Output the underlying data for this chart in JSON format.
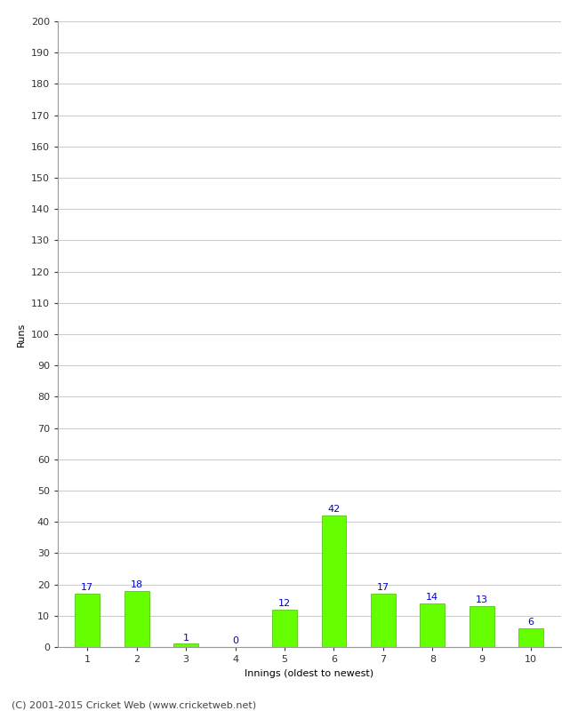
{
  "xlabel": "Innings (oldest to newest)",
  "ylabel": "Runs",
  "categories": [
    "1",
    "2",
    "3",
    "4",
    "5",
    "6",
    "7",
    "8",
    "9",
    "10"
  ],
  "values": [
    17,
    18,
    1,
    0,
    12,
    42,
    17,
    14,
    13,
    6
  ],
  "bar_color": "#66ff00",
  "bar_edge_color": "#44bb00",
  "label_color": "#0000cc",
  "ylim": [
    0,
    200
  ],
  "yticks": [
    0,
    10,
    20,
    30,
    40,
    50,
    60,
    70,
    80,
    90,
    100,
    110,
    120,
    130,
    140,
    150,
    160,
    170,
    180,
    190,
    200
  ],
  "background_color": "#ffffff",
  "grid_color": "#cccccc",
  "footer_text": "(C) 2001-2015 Cricket Web (www.cricketweb.net)",
  "label_fontsize": 8,
  "axis_label_fontsize": 8,
  "tick_fontsize": 8,
  "footer_fontsize": 8
}
